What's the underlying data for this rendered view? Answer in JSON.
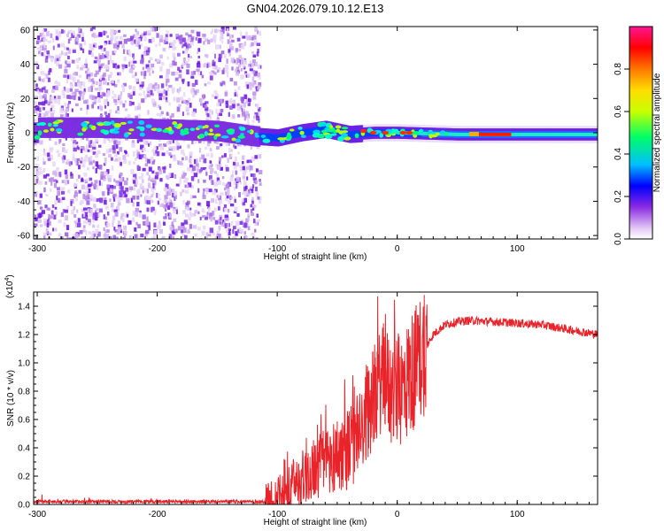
{
  "title": "GN04.2026.079.10.12.E13",
  "chart_data": [
    {
      "type": "heatmap",
      "xlabel": "Height of straight line (km)",
      "ylabel": "Frequency (Hz)",
      "xlim": [
        -303,
        167
      ],
      "ylim": [
        -62,
        62
      ],
      "xticks": [
        -300,
        -200,
        -100,
        0,
        100
      ],
      "yticks": [
        60,
        40,
        20,
        0,
        -20,
        -40,
        -60
      ],
      "colorbar": {
        "label": "Normalized spectral amplitude",
        "range": [
          0,
          1
        ],
        "ticks": [
          "0.0",
          "0.2",
          "0.4",
          "0.6",
          "0.8"
        ],
        "colors": [
          "#ffffff",
          "#e3c9f5",
          "#8a2be2",
          "#0000ff",
          "#00bfff",
          "#00ff66",
          "#c8ff00",
          "#ffdd00",
          "#ff7700",
          "#ff0000",
          "#ff1493"
        ]
      },
      "features": {
        "noise_region_km": [
          -300,
          -115
        ],
        "signal_track": [
          {
            "x": -300,
            "f": 3
          },
          {
            "x": -250,
            "f": 3
          },
          {
            "x": -200,
            "f": 2
          },
          {
            "x": -150,
            "f": 1
          },
          {
            "x": -120,
            "f": -2
          },
          {
            "x": -100,
            "f": -3
          },
          {
            "x": -80,
            "f": 0
          },
          {
            "x": -60,
            "f": 2
          },
          {
            "x": -40,
            "f": -1
          },
          {
            "x": -20,
            "f": 0
          },
          {
            "x": 0,
            "f": 0
          },
          {
            "x": 50,
            "f": -1
          },
          {
            "x": 100,
            "f": -1
          },
          {
            "x": 167,
            "f": -1
          }
        ]
      }
    },
    {
      "type": "line",
      "xlabel": "Height of straight line (km)",
      "ylabel": "SNR (10 * v/v)",
      "y_multiplier": "(x10^4)",
      "xlim": [
        -303,
        167
      ],
      "ylim": [
        0,
        1.5
      ],
      "xticks": [
        -300,
        -200,
        -100,
        0,
        100
      ],
      "yticks": [
        "0.0",
        "0.2",
        "0.4",
        "0.6",
        "0.8",
        "1.0",
        "1.2",
        "1.4"
      ],
      "color": "#e8242a",
      "series": [
        {
          "x": [
            -303,
            -250,
            -200,
            -150,
            -120,
            -110,
            -100,
            -90,
            -80,
            -70,
            -60,
            -50,
            -40,
            -30,
            -25,
            -20,
            -15,
            -10,
            -5,
            0,
            5,
            10,
            20,
            30,
            40,
            50,
            60,
            80,
            100,
            120,
            140,
            167
          ],
          "y": [
            0.02,
            0.02,
            0.02,
            0.02,
            0.02,
            0.02,
            0.05,
            0.1,
            0.18,
            0.25,
            0.3,
            0.35,
            0.4,
            0.5,
            0.65,
            0.75,
            0.85,
            0.9,
            0.78,
            0.8,
            0.82,
            0.9,
            1.05,
            1.2,
            1.27,
            1.29,
            1.3,
            1.29,
            1.28,
            1.27,
            1.24,
            1.2
          ]
        }
      ]
    }
  ]
}
